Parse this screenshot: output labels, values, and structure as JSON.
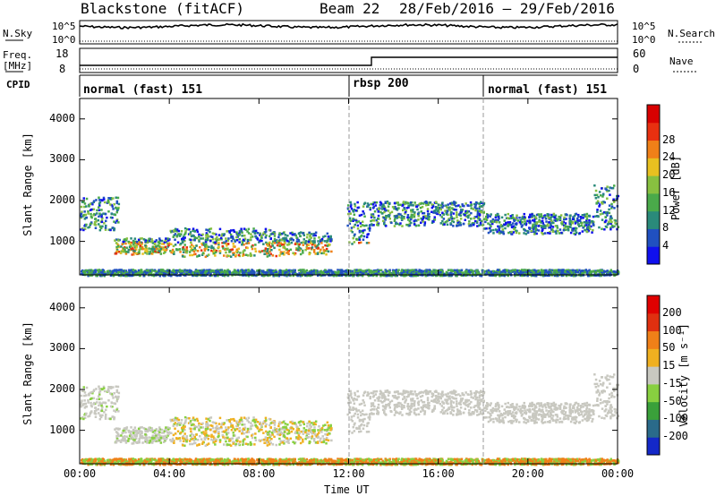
{
  "header": {
    "title": "Blackstone (fitACF)",
    "beam": "Beam 22",
    "date_range": "28/Feb/2016 – 29/Feb/2016"
  },
  "side_labels": {
    "nsky": "N.Sky",
    "freq": "Freq.",
    "freq_unit": "[MHz]",
    "cpid": "CPID",
    "nsearch": "N.Search",
    "nave": "Nave"
  },
  "top_axes": {
    "nsky_ticks": [
      "10^5",
      "10^0"
    ],
    "nsearch_ticks": [
      "10^5",
      "10^0"
    ],
    "freq_ticks": [
      "18",
      "8"
    ],
    "nave_ticks": [
      "60",
      "0"
    ]
  },
  "cpid_segments": [
    {
      "label": "normal (fast) 151",
      "start_hour": 0
    },
    {
      "label": "rbsp 200",
      "start_hour": 12
    },
    {
      "label": "normal (fast) 151",
      "start_hour": 18
    }
  ],
  "chart_data": [
    {
      "type": "heatmap",
      "name": "power",
      "ylabel": "Slant Range [km]",
      "x_ticks": [
        "00:00",
        "04:00",
        "08:00",
        "12:00",
        "16:00",
        "20:00",
        "00:00"
      ],
      "y_ticks": [
        "1000",
        "2000",
        "3000",
        "4000"
      ],
      "ylim": [
        180,
        4500
      ],
      "xlim_hours": [
        0,
        24
      ],
      "colorbar": {
        "label": "Power [dB]",
        "ticks": [
          "4",
          "8",
          "12",
          "16",
          "20",
          "24",
          "28"
        ],
        "colors": [
          "#1010ee",
          "#2050c0",
          "#2a8a7a",
          "#4aaa4a",
          "#88c040",
          "#e8c020",
          "#f08018",
          "#e83010",
          "#d80000"
        ]
      }
    },
    {
      "type": "heatmap",
      "name": "velocity",
      "ylabel": "Slant Range [km]",
      "xlabel": "Time UT",
      "x_ticks": [
        "00:00",
        "04:00",
        "08:00",
        "12:00",
        "16:00",
        "20:00",
        "00:00"
      ],
      "y_ticks": [
        "1000",
        "2000",
        "3000",
        "4000"
      ],
      "ylim": [
        180,
        4500
      ],
      "xlim_hours": [
        0,
        24
      ],
      "colorbar": {
        "label": "Velocity [m s⁻¹]",
        "ticks": [
          "200",
          "100",
          "50",
          "15",
          "-15",
          "-50",
          "-100",
          "-200"
        ],
        "colors": [
          "#1428c8",
          "#2a6a8a",
          "#3aa03a",
          "#88d040",
          "#c8c8c0",
          "#f0b020",
          "#f08018",
          "#e03010",
          "#e00000"
        ]
      }
    }
  ]
}
